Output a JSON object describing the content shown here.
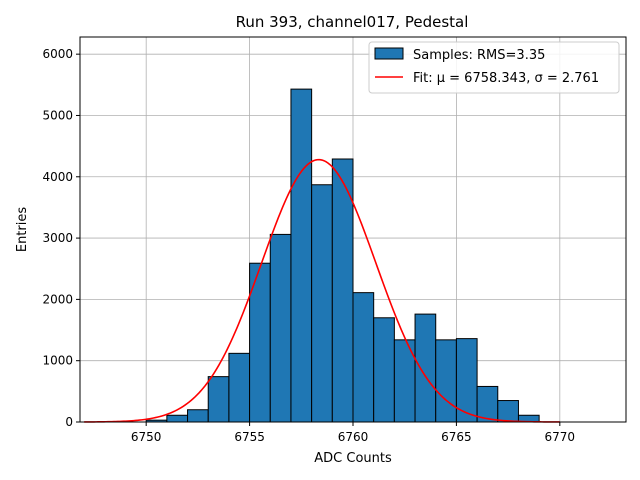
{
  "chart_data": {
    "type": "bar",
    "title": "Run 393, channel017, Pedestal",
    "xlabel": "ADC Counts",
    "ylabel": "Entries",
    "xlim": [
      6746.8,
      6773.2
    ],
    "ylim": [
      0,
      6280
    ],
    "grid": true,
    "legend_position": "top-right",
    "x_ticks": [
      6750,
      6755,
      6760,
      6765,
      6770
    ],
    "y_ticks": [
      0,
      1000,
      2000,
      3000,
      4000,
      5000,
      6000
    ],
    "histogram": {
      "name": "Samples: RMS=3.35",
      "color": "#1f77b4",
      "edge_color": "#000000",
      "bin_edges": [
        6750,
        6751,
        6752,
        6753,
        6754,
        6755,
        6756,
        6757,
        6758,
        6759,
        6760,
        6761,
        6762,
        6763,
        6764,
        6765,
        6766,
        6767,
        6768,
        6769
      ],
      "values": [
        30,
        110,
        200,
        740,
        1120,
        2590,
        3060,
        5430,
        3870,
        4290,
        2110,
        1700,
        1340,
        1760,
        1340,
        1360,
        580,
        350,
        110
      ]
    },
    "fit": {
      "name": "Fit: μ = 6758.343, σ = 2.761",
      "color": "#ff0000",
      "mu": 6758.343,
      "sigma": 2.761,
      "amplitude": 4280,
      "x_range": [
        6747,
        6770
      ]
    }
  }
}
